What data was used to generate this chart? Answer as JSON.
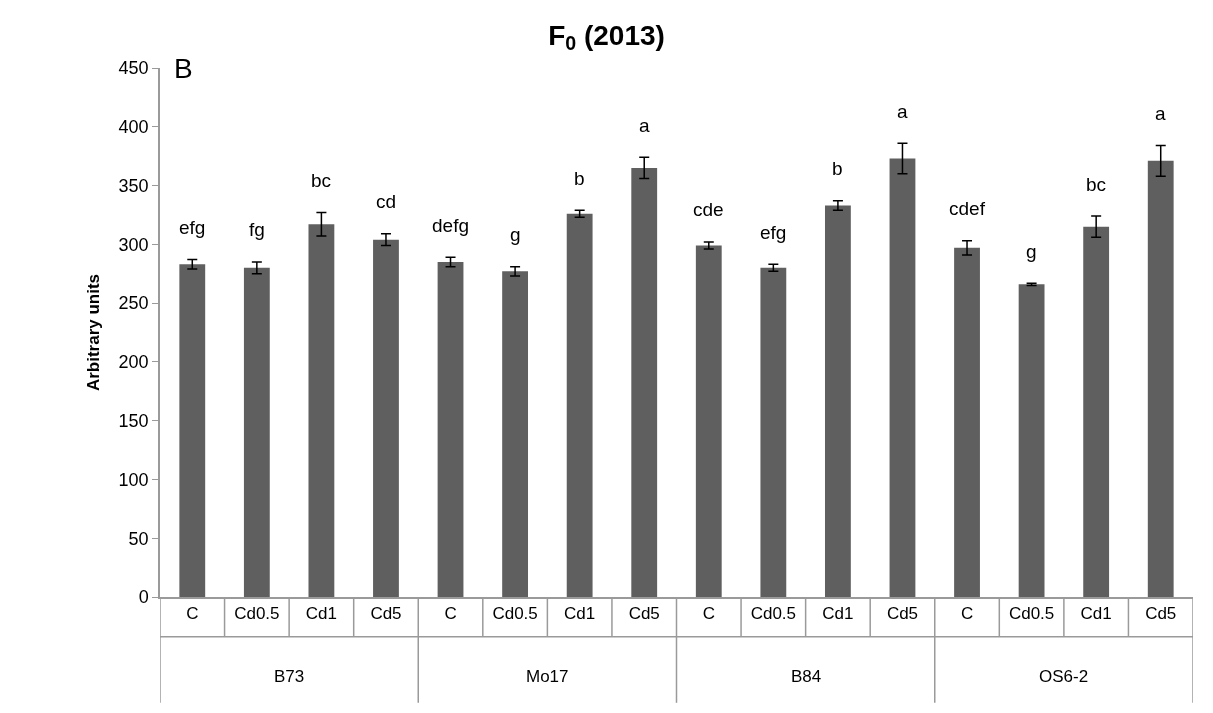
{
  "chart_data": {
    "type": "bar",
    "title": "F$_{0}$ (2013)",
    "ylabel": "Arbitrary units",
    "categories": [
      "C",
      "Cd0.5",
      "Cd1",
      "Cd5",
      "C",
      "Cd0.5",
      "Cd1",
      "Cd5",
      "C",
      "Cd0.5",
      "Cd1",
      "Cd5",
      "C",
      "Cd0.5",
      "Cd1",
      "Cd5"
    ],
    "values": [
      283,
      280,
      317,
      304,
      285,
      277,
      326,
      365,
      299,
      280,
      333,
      373,
      297,
      266,
      315,
      371
    ],
    "errors": [
      4,
      5,
      10,
      5,
      4,
      4,
      3,
      9,
      3,
      3,
      4,
      13,
      6,
      1,
      9,
      13
    ],
    "color": "#5f5f5f",
    "ylim": [
      0,
      450
    ],
    "yticks": [
      0,
      50,
      100,
      150,
      200,
      250,
      300,
      350,
      400,
      450
    ],
    "annotations": [
      "B",
      "efg",
      "fg",
      "bc",
      "cd",
      "defg",
      "g",
      "b",
      "a",
      "cde",
      "efg",
      "b",
      "a",
      "cdef",
      "g",
      "bc",
      "a",
      "B73",
      "Mo17",
      "B84",
      "OS6-2"
    ]
  }
}
